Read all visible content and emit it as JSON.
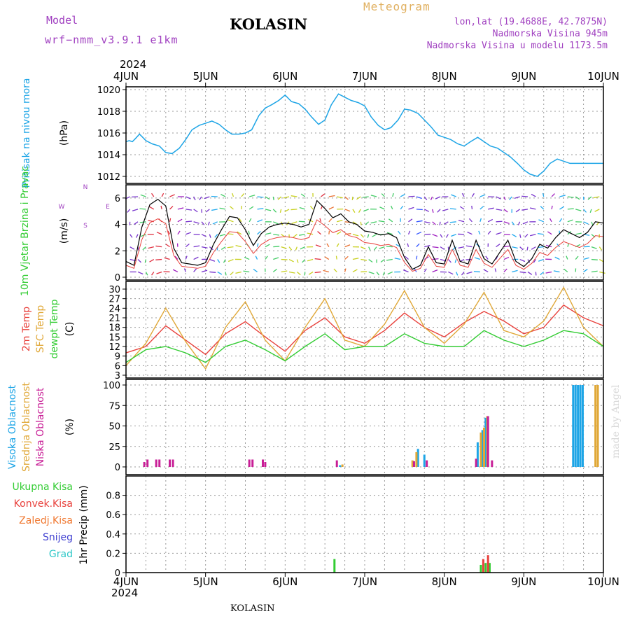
{
  "header": {
    "model_label": "Model",
    "model_name": "wrf−nmm_v3.9.1  e1km",
    "station": "KOLASIN",
    "meteogram": "Meteogram",
    "lonlat": "lon,lat (19.4688E, 42.7875N)",
    "elevation": "Nadmorska Visina 945m",
    "elevation_model": "Nadmorska Visina u modelu 1173.5m",
    "year_top": "2024",
    "year_bottom": "2024",
    "footer_station": "KOLASIN",
    "watermark": "made by Angel"
  },
  "colors": {
    "pressure": "#1ea5e6",
    "t2m": "#e8413c",
    "sfc": "#e0a838",
    "dewpt": "#33cc33",
    "high_cloud": "#1ea5e6",
    "mid_cloud": "#e0a838",
    "low_cloud": "#c81e96",
    "total_precip": "#33cc33",
    "conv_precip": "#e8413c",
    "frz_precip": "#f07830",
    "snow": "#4040d0",
    "graupel": "#30c8c8"
  },
  "chart_data": [
    {
      "type": "line",
      "ylabel": "Pritisak na nivou mora",
      "unit": "(hPa)",
      "x_categories": [
        "4JUN",
        "5JUN",
        "6JUN",
        "7JUN",
        "8JUN",
        "9JUN",
        "10JUN"
      ],
      "ylim": [
        1012,
        1020
      ],
      "yticks": [
        1012,
        1014,
        1016,
        1018,
        1020
      ],
      "x_days": [
        0,
        0.04,
        0.08,
        0.12,
        0.17,
        0.21,
        0.25,
        0.33,
        0.42,
        0.5,
        0.58,
        0.67,
        0.75,
        0.83,
        0.92,
        1.0,
        1.08,
        1.17,
        1.25,
        1.33,
        1.42,
        1.5,
        1.58,
        1.67,
        1.75,
        1.83,
        1.92,
        2.0,
        2.08,
        2.17,
        2.25,
        2.33,
        2.42,
        2.5,
        2.58,
        2.67,
        2.75,
        2.83,
        2.92,
        3.0,
        3.08,
        3.17,
        3.25,
        3.33,
        3.42,
        3.5,
        3.58,
        3.67,
        3.75,
        3.83,
        3.92,
        4.0,
        4.08,
        4.17,
        4.25,
        4.33,
        4.42,
        4.5,
        4.58,
        4.67,
        4.75,
        4.83,
        4.92,
        5.0,
        5.08,
        5.17,
        5.25,
        5.33,
        5.42,
        5.5,
        5.58,
        5.67,
        5.75,
        5.83,
        5.92,
        6.0
      ],
      "values": [
        1015.2,
        1015.3,
        1015.2,
        1015.5,
        1015.9,
        1015.6,
        1015.3,
        1015.0,
        1014.8,
        1014.2,
        1014.1,
        1014.6,
        1015.4,
        1016.3,
        1016.7,
        1016.9,
        1017.1,
        1016.8,
        1016.3,
        1015.9,
        1015.9,
        1016.0,
        1016.3,
        1017.6,
        1018.3,
        1018.6,
        1019.0,
        1019.5,
        1018.9,
        1018.7,
        1018.2,
        1017.5,
        1016.8,
        1017.2,
        1018.6,
        1019.6,
        1019.3,
        1019.0,
        1018.8,
        1018.5,
        1017.5,
        1016.7,
        1016.3,
        1016.5,
        1017.2,
        1018.2,
        1018.1,
        1017.8,
        1017.2,
        1016.6,
        1015.8,
        1015.6,
        1015.4,
        1015.0,
        1014.8,
        1015.2,
        1015.6,
        1015.2,
        1014.8,
        1014.6,
        1014.2,
        1013.8,
        1013.2,
        1012.6,
        1012.2,
        1012.0,
        1012.5,
        1013.2,
        1013.6,
        1013.4,
        1013.2,
        1013.2,
        1013.2,
        1013.2,
        1013.2,
        1013.2
      ]
    },
    {
      "type": "line",
      "ylabel": "10m Vjetar Brzina i Pravac",
      "unit": "(m/s)",
      "compass": {
        "n": "N",
        "s": "S",
        "e": "E",
        "w": "W"
      },
      "ylim": [
        0,
        7
      ],
      "yticks": [
        0,
        2,
        4,
        6
      ],
      "series": [
        {
          "name": "speed",
          "x": [
            0,
            0.1,
            0.2,
            0.3,
            0.4,
            0.5,
            0.6,
            0.7,
            0.8,
            0.9,
            1.0,
            1.1,
            1.2,
            1.3,
            1.4,
            1.5,
            1.6,
            1.7,
            1.8,
            1.9,
            2.0,
            2.1,
            2.2,
            2.3,
            2.4,
            2.5,
            2.6,
            2.7,
            2.8,
            2.9,
            3.0,
            3.1,
            3.2,
            3.3,
            3.4,
            3.5,
            3.6,
            3.7,
            3.8,
            3.9,
            4.0,
            4.1,
            4.2,
            4.3,
            4.4,
            4.5,
            4.6,
            4.7,
            4.8,
            4.9,
            5.0,
            5.1,
            5.2,
            5.3,
            5.4,
            5.5,
            5.6,
            5.7,
            5.8,
            5.9,
            6.0
          ],
          "values": [
            1.2,
            0.9,
            3.8,
            5.5,
            5.9,
            5.4,
            2.2,
            1.1,
            1.0,
            0.9,
            1.1,
            2.5,
            3.6,
            4.6,
            4.5,
            3.6,
            2.4,
            3.3,
            3.8,
            4.0,
            4.1,
            4.0,
            3.8,
            4.0,
            5.8,
            5.2,
            4.5,
            4.8,
            4.2,
            4.0,
            3.5,
            3.4,
            3.2,
            3.3,
            3.0,
            1.5,
            0.6,
            0.9,
            2.3,
            1.1,
            1.0,
            2.8,
            1.2,
            1.0,
            2.8,
            1.4,
            1.0,
            1.9,
            2.8,
            1.2,
            0.8,
            1.4,
            2.5,
            2.2,
            3.0,
            3.6,
            3.3,
            3.0,
            3.4,
            4.2,
            4.1
          ]
        }
      ]
    },
    {
      "type": "line",
      "ylabel": [
        "2m Temp",
        "SFC Temp",
        "dewpt Temp"
      ],
      "unit": "(C)",
      "ylim": [
        3,
        30
      ],
      "yticks": [
        3,
        6,
        9,
        12,
        15,
        18,
        21,
        24,
        27,
        30
      ],
      "x": [
        0,
        0.25,
        0.5,
        0.75,
        1.0,
        1.25,
        1.5,
        1.75,
        2.0,
        2.25,
        2.5,
        2.75,
        3.0,
        3.25,
        3.5,
        3.75,
        4.0,
        4.25,
        4.5,
        4.75,
        5.0,
        5.25,
        5.5,
        5.75,
        6.0
      ],
      "series": [
        {
          "name": "2m Temp",
          "values": [
            10,
            12,
            18.5,
            14,
            9.5,
            16,
            19.8,
            15,
            10.5,
            17,
            21,
            15,
            13,
            17,
            22.5,
            18,
            15,
            19.5,
            23,
            20,
            16,
            18,
            25,
            21,
            18.5
          ]
        },
        {
          "name": "SFC Temp",
          "values": [
            6,
            13,
            24,
            13.5,
            5,
            18,
            26,
            14,
            7.5,
            18,
            27,
            14,
            12,
            19,
            29.5,
            18,
            13,
            19,
            29,
            17,
            15,
            20,
            30.5,
            18,
            12
          ]
        },
        {
          "name": "dewpt Temp",
          "values": [
            7,
            11,
            12,
            10,
            7,
            12,
            14,
            11,
            7.5,
            12,
            16,
            11,
            12,
            12,
            16,
            13,
            12,
            12,
            17,
            14,
            12,
            14,
            17,
            16,
            12
          ]
        }
      ]
    },
    {
      "type": "bar",
      "ylabel": [
        "Visoka Oblacnost",
        "Srednja Oblacnost",
        "Niska Oblacnost"
      ],
      "unit": "(%)",
      "ylim": [
        0,
        100
      ],
      "yticks": [
        0,
        25,
        50,
        75,
        100
      ],
      "series": [
        {
          "name": "Visoka Oblacnost",
          "x": [
            2.69,
            3.67,
            3.75,
            4.42,
            4.48,
            4.52,
            5.62,
            5.65,
            5.68,
            5.71,
            5.74
          ],
          "values": [
            2,
            22,
            15,
            30,
            45,
            60,
            100,
            100,
            100,
            100,
            100
          ]
        },
        {
          "name": "Srednja Oblacnost",
          "x": [
            2.72,
            3.6,
            3.65,
            4.46,
            4.5,
            4.54,
            5.9,
            5.93
          ],
          "values": [
            3,
            8,
            18,
            42,
            48,
            62,
            100,
            100
          ]
        },
        {
          "name": "Niska Oblacnost",
          "x": [
            0.23,
            0.27,
            0.38,
            0.42,
            0.55,
            0.59,
            1.55,
            1.59,
            1.72,
            1.75,
            2.65,
            3.62,
            3.78,
            4.4,
            4.55,
            4.6
          ],
          "values": [
            6,
            9,
            9,
            9,
            9,
            9,
            9,
            9,
            9,
            6,
            8,
            7,
            8,
            10,
            62,
            8
          ]
        }
      ]
    },
    {
      "type": "bar",
      "ylabel": "1hr Precip",
      "unit": "(mm)",
      "legend": [
        "Ukupna  Kisa",
        "Konvek.Kisa",
        "Zaledj.Kisa",
        "Snijeg",
        "Grad"
      ],
      "ylim": [
        0,
        1.0
      ],
      "yticks": [
        0,
        0.2,
        0.4,
        0.6,
        0.8
      ],
      "series": [
        {
          "name": "Ukupna  Kisa",
          "x": [
            2.62,
            4.46,
            4.52,
            4.57
          ],
          "values": [
            0.14,
            0.08,
            0.1,
            0.1
          ]
        },
        {
          "name": "Konvek.Kisa",
          "x": [
            4.49,
            4.55
          ],
          "values": [
            0.14,
            0.18
          ]
        }
      ]
    }
  ]
}
